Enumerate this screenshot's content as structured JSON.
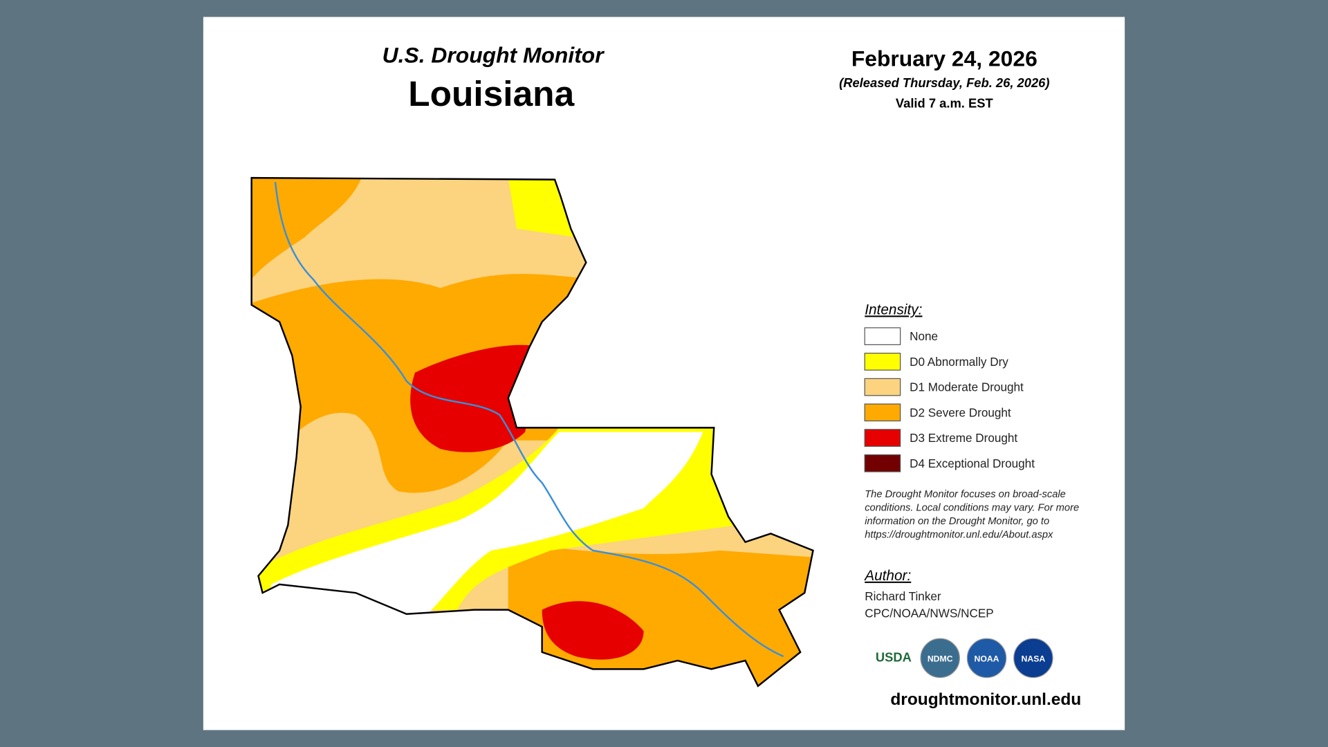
{
  "header": {
    "title": "U.S. Drought Monitor",
    "state": "Louisiana",
    "date": "February 24, 2026",
    "released": "(Released Thursday, Feb. 26, 2026)",
    "valid": "Valid 7 a.m. EST"
  },
  "legend": {
    "title": "Intensity:",
    "items": [
      {
        "label": "None",
        "color": "#ffffff"
      },
      {
        "label": "D0 Abnormally Dry",
        "color": "#ffff00"
      },
      {
        "label": "D1 Moderate Drought",
        "color": "#fcd37f"
      },
      {
        "label": "D2 Severe Drought",
        "color": "#ffaa00"
      },
      {
        "label": "D3 Extreme Drought",
        "color": "#e60000"
      },
      {
        "label": "D4 Exceptional Drought",
        "color": "#730000"
      }
    ]
  },
  "note": [
    "The Drought Monitor focuses on broad-scale",
    "conditions. Local conditions may vary. For more",
    "information on the Drought Monitor, go to",
    "https://droughtmonitor.unl.edu/About.aspx"
  ],
  "author": {
    "label": "Author:",
    "name": "Richard Tinker",
    "org": "CPC/NOAA/NWS/NCEP"
  },
  "logos": [
    "USDA",
    "NDMC",
    "NOAA",
    "NASA"
  ],
  "url": "droughtmonitor.unl.edu"
}
